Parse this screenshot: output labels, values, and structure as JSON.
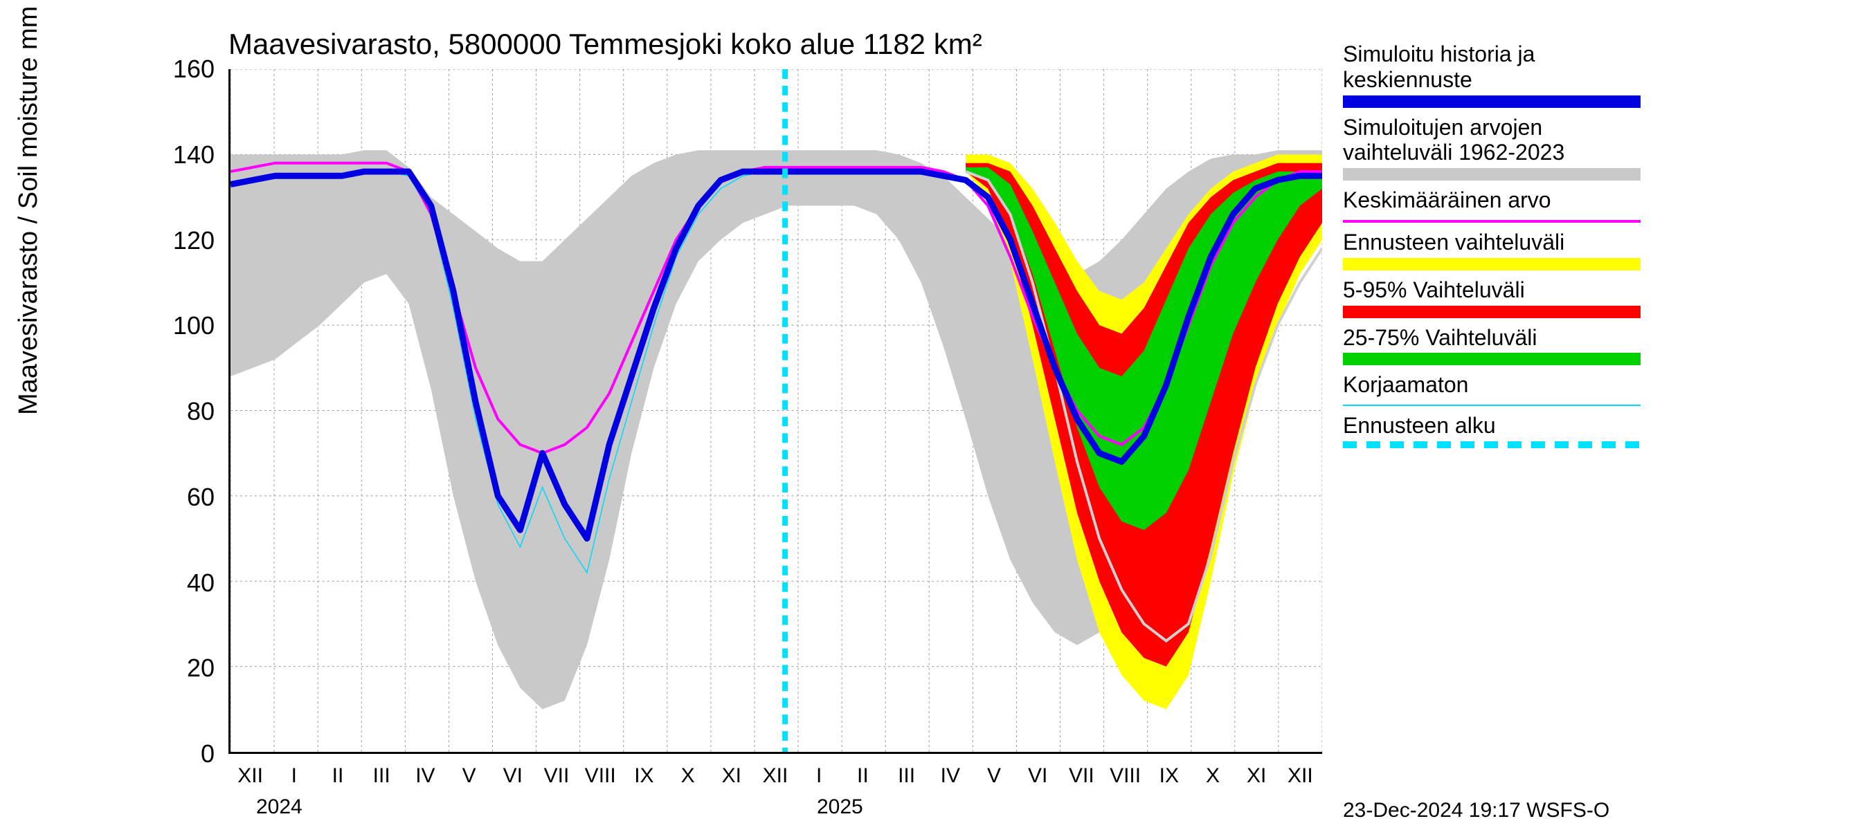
{
  "title": "Maavesivarasto, 5800000 Temmesjoki koko alue 1182 km²",
  "ylabel": "Maavesivarasto / Soil moisture   mm",
  "timestamp": "23-Dec-2024 19:17 WSFS-O",
  "year1": "2024",
  "year2": "2025",
  "chart": {
    "type": "line-band",
    "background": "#ffffff",
    "grid_color": "#999999",
    "x_months": [
      "XII",
      "I",
      "II",
      "III",
      "IV",
      "V",
      "VI",
      "VII",
      "VIII",
      "IX",
      "X",
      "XI",
      "XII",
      "I",
      "II",
      "III",
      "IV",
      "V",
      "VI",
      "VII",
      "VIII",
      "IX",
      "X",
      "XI",
      "XII"
    ],
    "ylim": [
      0,
      160
    ],
    "yticks": [
      0,
      20,
      40,
      60,
      80,
      100,
      120,
      140,
      160
    ],
    "title_fontsize": 42,
    "label_fontsize": 38,
    "tick_fontsize": 30,
    "forecast_start_x": 12.7,
    "series": {
      "gray_band": {
        "color": "#c9c9c9",
        "upper": [
          140,
          140,
          140,
          140,
          140,
          140,
          141,
          141,
          137,
          130,
          126,
          122,
          118,
          115,
          115,
          120,
          125,
          130,
          135,
          138,
          140,
          141,
          141,
          141,
          141,
          141,
          141,
          141,
          141,
          141,
          140,
          138,
          135,
          130,
          125,
          120,
          115,
          112,
          112,
          115,
          120,
          126,
          132,
          136,
          139,
          140,
          140,
          141,
          141,
          141
        ],
        "lower": [
          88,
          90,
          92,
          96,
          100,
          105,
          110,
          112,
          105,
          85,
          60,
          40,
          25,
          15,
          10,
          12,
          25,
          45,
          70,
          90,
          105,
          115,
          120,
          124,
          126,
          128,
          128,
          128,
          128,
          126,
          120,
          110,
          95,
          78,
          60,
          45,
          35,
          28,
          25,
          28,
          38,
          55,
          75,
          95,
          108,
          118,
          124,
          128,
          130,
          132
        ]
      },
      "yellow_band": {
        "color": "#ffff00",
        "start_idx": 33,
        "upper": [
          140,
          140,
          138,
          132,
          124,
          115,
          108,
          106,
          110,
          118,
          126,
          132,
          136,
          138,
          140,
          140,
          140
        ],
        "lower": [
          136,
          130,
          115,
          92,
          68,
          45,
          28,
          18,
          12,
          10,
          18,
          40,
          65,
          85,
          100,
          112,
          120
        ]
      },
      "red_band": {
        "color": "#ff0000",
        "start_idx": 33,
        "upper": [
          138,
          138,
          136,
          128,
          118,
          108,
          100,
          98,
          104,
          114,
          124,
          130,
          134,
          136,
          138,
          138,
          138
        ],
        "lower": [
          136,
          132,
          120,
          100,
          78,
          56,
          40,
          28,
          22,
          20,
          28,
          48,
          70,
          90,
          105,
          116,
          124
        ]
      },
      "green_band": {
        "color": "#00d000",
        "start_idx": 33,
        "upper": [
          137,
          137,
          133,
          122,
          110,
          98,
          90,
          88,
          94,
          106,
          118,
          126,
          131,
          134,
          136,
          136,
          136
        ],
        "lower": [
          136,
          134,
          126,
          112,
          94,
          76,
          62,
          54,
          52,
          56,
          66,
          82,
          98,
          110,
          120,
          128,
          132
        ]
      },
      "blue_line": {
        "color": "#0000e0",
        "width": 9,
        "y": [
          133,
          134,
          135,
          135,
          135,
          135,
          136,
          136,
          136,
          128,
          108,
          82,
          60,
          52,
          70,
          58,
          50,
          72,
          88,
          104,
          118,
          128,
          134,
          136,
          136,
          136,
          136,
          136,
          136,
          136,
          136,
          136,
          135,
          134,
          130,
          120,
          105,
          90,
          78,
          70,
          68,
          74,
          86,
          102,
          116,
          126,
          132,
          134,
          135,
          135
        ]
      },
      "magenta_line": {
        "color": "#ff00ff",
        "width": 4,
        "y": [
          136,
          137,
          138,
          138,
          138,
          138,
          138,
          138,
          136,
          126,
          108,
          90,
          78,
          72,
          70,
          72,
          76,
          84,
          96,
          108,
          120,
          128,
          134,
          136,
          137,
          137,
          137,
          137,
          137,
          137,
          137,
          137,
          136,
          134,
          128,
          116,
          102,
          90,
          80,
          74,
          72,
          76,
          86,
          100,
          114,
          124,
          130,
          134,
          136,
          136
        ]
      },
      "cyan_thin": {
        "color": "#00d8ff",
        "width": 1.5,
        "y": [
          133,
          134,
          135,
          135,
          135,
          135,
          136,
          136,
          135,
          126,
          104,
          78,
          58,
          48,
          62,
          50,
          42,
          64,
          82,
          100,
          116,
          126,
          132,
          135,
          136,
          136,
          136,
          136,
          136,
          136,
          136,
          136,
          135,
          134,
          130,
          120,
          105,
          90,
          78,
          70,
          68,
          74,
          86,
          102,
          116,
          126,
          132,
          134,
          135,
          135
        ]
      },
      "lightgray_line": {
        "color": "#d0d0d0",
        "width": 4,
        "start_idx": 33,
        "y": [
          136,
          134,
          126,
          110,
          90,
          68,
          50,
          38,
          30,
          26,
          30,
          46,
          68,
          86,
          100,
          110,
          118
        ]
      },
      "forecast_divider": {
        "color": "#00e0ff",
        "dash": "14 10",
        "width": 8
      }
    }
  },
  "legend": [
    {
      "label": "Simuloitu historia ja keskiennuste",
      "type": "swatch",
      "color": "#0000e0"
    },
    {
      "label": "Simuloitujen arvojen vaihteluväli 1962-2023",
      "type": "swatch",
      "color": "#c9c9c9"
    },
    {
      "label": "Keskimääräinen arvo",
      "type": "line",
      "color": "#ff00ff"
    },
    {
      "label": "Ennusteen vaihteluväli",
      "type": "swatch",
      "color": "#ffff00"
    },
    {
      "label": "5-95% Vaihteluväli",
      "type": "swatch",
      "color": "#ff0000"
    },
    {
      "label": "25-75% Vaihteluväli",
      "type": "swatch",
      "color": "#00d000"
    },
    {
      "label": "Korjaamaton",
      "type": "line",
      "color": "#00d8ff",
      "thin": true
    },
    {
      "label": "Ennusteen alku",
      "type": "dash",
      "color": "#00e0ff"
    }
  ]
}
